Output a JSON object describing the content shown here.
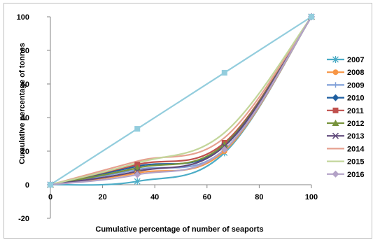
{
  "chart_data": {
    "type": "line",
    "title": "",
    "xlabel": "Cumulative percentage of number of seaports",
    "ylabel": "Cumulative percentage of tonnes",
    "xlim": [
      0,
      100
    ],
    "ylim": [
      -20,
      100
    ],
    "x_ticks": [
      "0",
      "20",
      "40",
      "60",
      "80",
      "100"
    ],
    "y_ticks": [
      "-20",
      "0",
      "20",
      "40",
      "60",
      "80",
      "100"
    ],
    "x": [
      0,
      33.3,
      66.7,
      100
    ],
    "grid": false,
    "legend": "right",
    "series": [
      {
        "name": "2007",
        "values": [
          0,
          2,
          19,
          100
        ],
        "color": "#4bacc6",
        "marker": "asterisk"
      },
      {
        "name": "2008",
        "values": [
          0,
          7,
          20,
          100
        ],
        "color": "#f79646",
        "marker": "circle"
      },
      {
        "name": "2009",
        "values": [
          0,
          9,
          21,
          100
        ],
        "color": "#7f9fd8",
        "marker": "plus"
      },
      {
        "name": "2010",
        "values": [
          0,
          11,
          23,
          100
        ],
        "color": "#1f5fa0",
        "marker": "diamond"
      },
      {
        "name": "2011",
        "values": [
          0,
          12,
          25,
          100
        ],
        "color": "#c0504d",
        "marker": "square"
      },
      {
        "name": "2012",
        "values": [
          0,
          10,
          24,
          100
        ],
        "color": "#77933c",
        "marker": "triangle"
      },
      {
        "name": "2013",
        "values": [
          0,
          8,
          23,
          100
        ],
        "color": "#604a7b",
        "marker": "x"
      },
      {
        "name": "2014",
        "values": [
          0,
          14,
          28,
          100
        ],
        "color": "#e6a08f",
        "marker": "none"
      },
      {
        "name": "2015",
        "values": [
          0,
          13,
          31,
          100
        ],
        "color": "#c3d69b",
        "marker": "none"
      },
      {
        "name": "2016",
        "values": [
          0,
          6,
          21,
          100
        ],
        "color": "#b3a2c7",
        "marker": "diamond"
      },
      {
        "name": "",
        "values": [
          0,
          33.3,
          66.7,
          100
        ],
        "color": "#93cddd",
        "marker": "square",
        "smooth": false
      }
    ]
  }
}
